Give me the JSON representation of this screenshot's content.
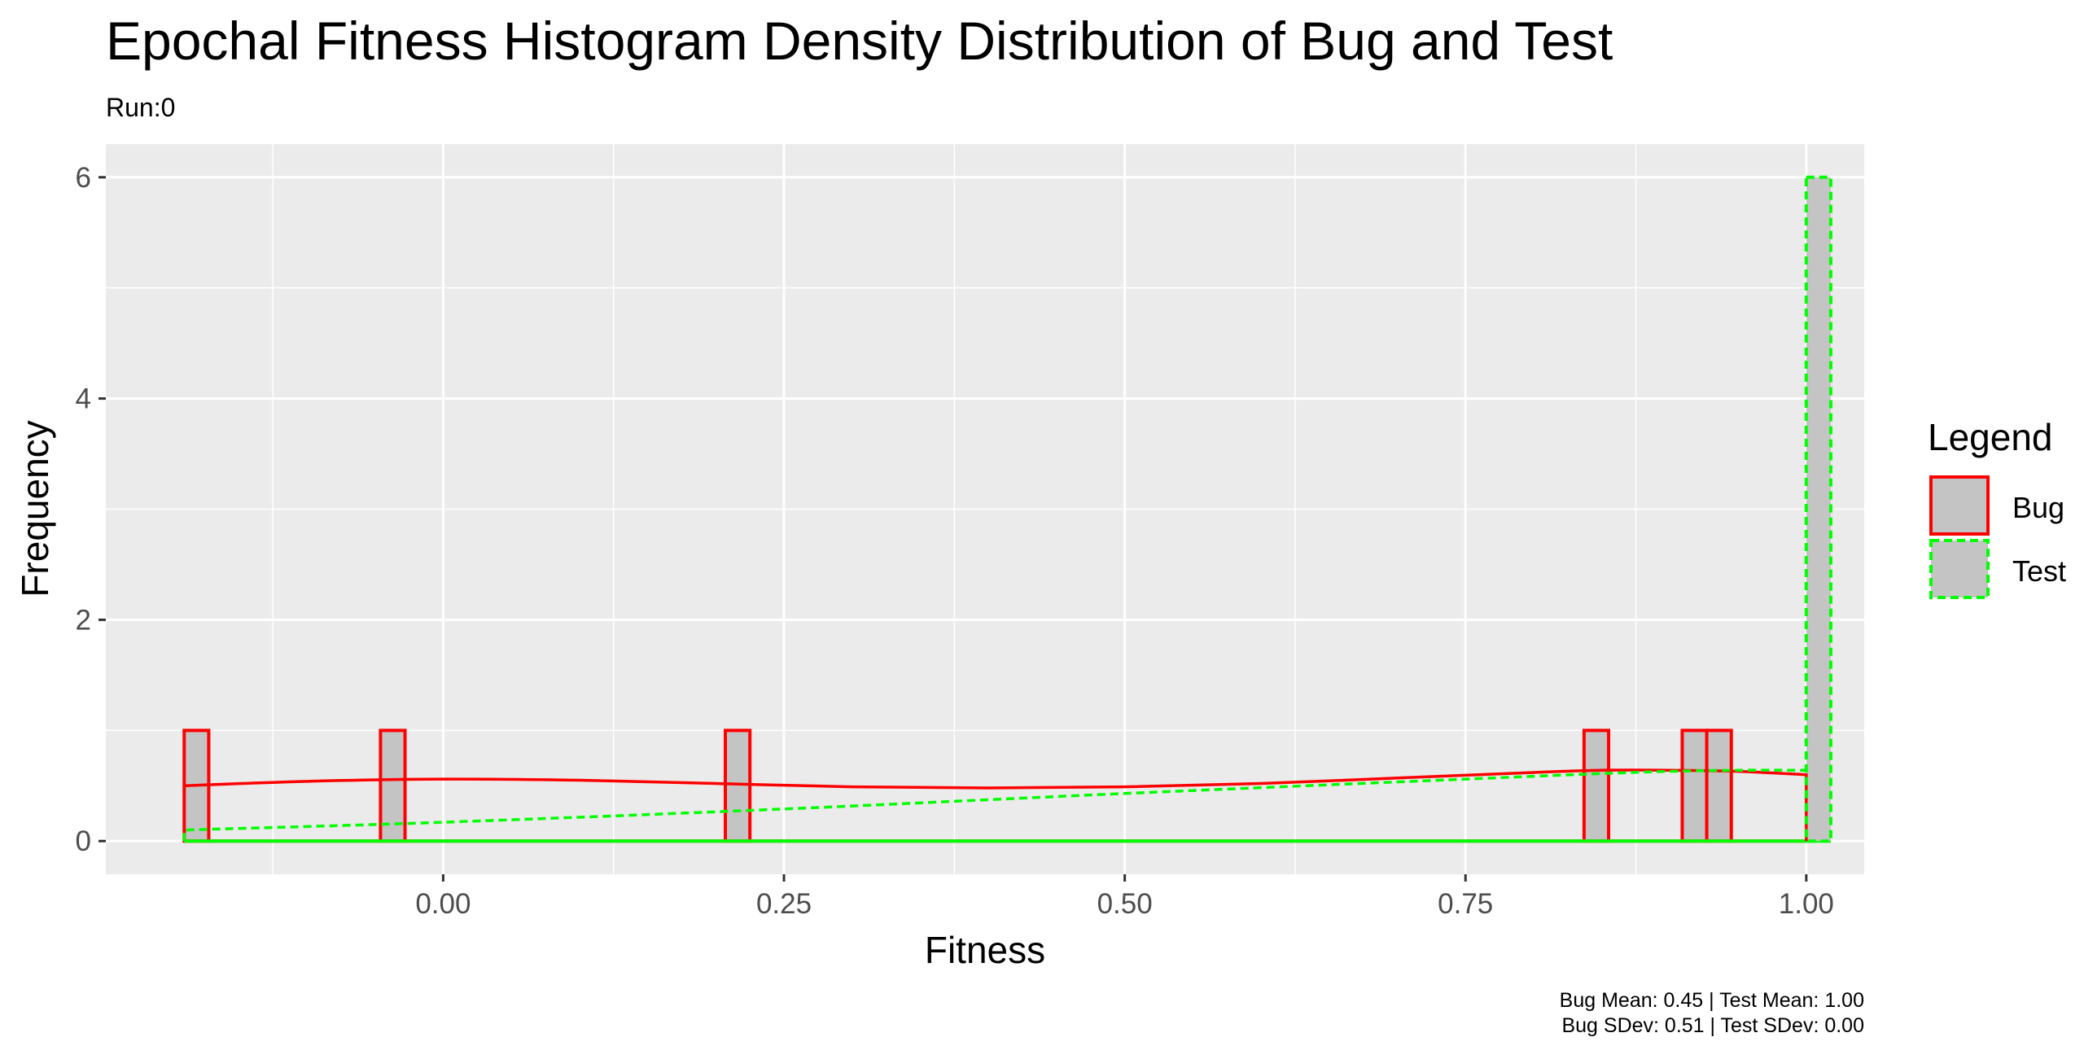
{
  "chart_data": {
    "type": "bar",
    "title": "Epochal Fitness Histogram Density Distribution of Bug and Test",
    "subtitle": "Run:0",
    "xlabel": "Fitness",
    "ylabel": "Frequency",
    "xlim": [
      -0.2475,
      1.0425
    ],
    "ylim": [
      -0.3,
      6.3
    ],
    "x_ticks": [
      0.0,
      0.25,
      0.5,
      0.75,
      1.0
    ],
    "x_tick_labels": [
      "0.00",
      "0.25",
      "0.50",
      "0.75",
      "1.00"
    ],
    "y_ticks": [
      0,
      2,
      4,
      6
    ],
    "y_tick_labels": [
      "0",
      "2",
      "4",
      "6"
    ],
    "bin_width": 0.018,
    "grid": true,
    "legend": {
      "title": "Legend",
      "position": "right",
      "entries": [
        {
          "label": "Bug",
          "color": "#ff0000",
          "linetype": "solid"
        },
        {
          "label": "Test",
          "color": "#00ff00",
          "linetype": "dashed"
        }
      ]
    },
    "series": [
      {
        "name": "Bug",
        "color": "#ff0000",
        "linetype": "solid",
        "bins": [
          {
            "x": -0.181,
            "count": 1
          },
          {
            "x": -0.037,
            "count": 1
          },
          {
            "x": 0.216,
            "count": 1
          },
          {
            "x": 0.846,
            "count": 1
          },
          {
            "x": 0.918,
            "count": 1
          },
          {
            "x": 0.936,
            "count": 1
          }
        ],
        "density": {
          "x": [
            -0.19,
            -0.1,
            0.0,
            0.1,
            0.2,
            0.3,
            0.4,
            0.5,
            0.6,
            0.7,
            0.8,
            0.85,
            0.9,
            0.95,
            1.0
          ],
          "y": [
            0.5,
            0.54,
            0.56,
            0.55,
            0.52,
            0.49,
            0.48,
            0.49,
            0.52,
            0.57,
            0.62,
            0.64,
            0.64,
            0.63,
            0.6
          ]
        }
      },
      {
        "name": "Test",
        "color": "#00ff00",
        "linetype": "dashed",
        "bins": [
          {
            "x": 1.009,
            "count": 6
          }
        ],
        "density": {
          "x": [
            -0.19,
            0.0,
            0.25,
            0.5,
            0.75,
            0.85,
            0.9,
            0.95,
            1.0
          ],
          "y": [
            0.1,
            0.17,
            0.29,
            0.43,
            0.56,
            0.61,
            0.63,
            0.64,
            0.64
          ]
        }
      }
    ],
    "caption_lines": [
      "Bug Mean: 0.45 | Test Mean: 1.00",
      "Bug SDev: 0.51 | Test SDev: 0.00"
    ],
    "colors": {
      "panel_background": "#ebebeb",
      "grid": "#ffffff",
      "bar_fill": "#c4c4c4"
    }
  }
}
